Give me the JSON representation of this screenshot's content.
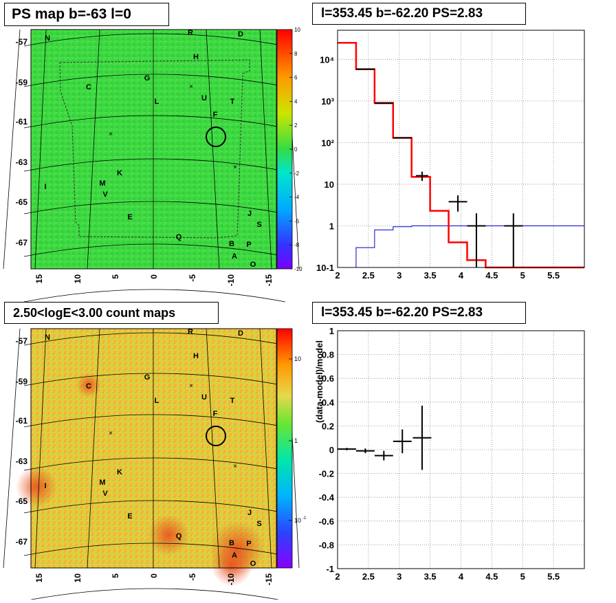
{
  "panels": {
    "tl_title": "PS map b=-63 l=0",
    "tr_title": "l=353.45 b=-62.20 PS=2.83",
    "bl_title": "2.50<logE<3.00 count maps",
    "br_title": "l=353.45 b=-62.20 PS=2.83"
  },
  "sky_maps": {
    "b_labels": [
      "-57",
      "-59",
      "-61",
      "-63",
      "-65",
      "-67"
    ],
    "l_labels": [
      "15",
      "10",
      "5",
      "0",
      "-5",
      "-10",
      "-15"
    ],
    "sources": [
      "N",
      "R",
      "D",
      "H",
      "C",
      "G",
      "U",
      "L",
      "T",
      "F",
      "K",
      "M",
      "V",
      "I",
      "E",
      "J",
      "S",
      "Q",
      "B",
      "P",
      "A",
      "O"
    ],
    "ps_colorbar_labels": [
      "10",
      "8",
      "6",
      "4",
      "2",
      "0",
      "-2",
      "-4",
      "-6",
      "-8",
      "-10"
    ],
    "count_colorbar_labels": [
      "10",
      "1",
      "10",
      "-1"
    ],
    "colors": {
      "map_background": "#3cd840",
      "counts_background": "#e8d040"
    }
  },
  "chart_data": [
    {
      "type": "line",
      "panel": "spectrum",
      "y_scale": "log",
      "xlim": [
        2,
        6
      ],
      "ylim": [
        0.1,
        50000
      ],
      "x_ticks": [
        "2",
        "2.5",
        "3",
        "3.5",
        "4",
        "4.5",
        "5",
        "5.5"
      ],
      "y_ticks": [
        "10-1",
        "1",
        "10",
        "10²",
        "10³",
        "10⁴"
      ],
      "series": [
        {
          "kind": "model-total",
          "color": "#ff0000",
          "edges": [
            2,
            2.3,
            2.6,
            2.9,
            3.2,
            3.5,
            3.8,
            4.1,
            4.4,
            6
          ],
          "values": [
            25000,
            5800,
            900,
            130,
            15,
            2.3,
            0.4,
            0.15,
            0.1
          ]
        },
        {
          "kind": "model-background",
          "color": "#0000cc",
          "edges": [
            2.3,
            2.6,
            2.9,
            3.2,
            3.5,
            6
          ],
          "values": [
            0.3,
            0.8,
            0.95,
            1.0,
            1.0
          ]
        },
        {
          "kind": "data",
          "color": "#000000",
          "points": [
            [
              2.45,
              5800,
              0.15,
              0
            ],
            [
              2.75,
              880,
              0.15,
              0
            ],
            [
              3.05,
              130,
              0.15,
              0
            ],
            [
              3.37,
              16,
              0.1,
              4
            ],
            [
              3.95,
              3.8,
              0.15,
              1.6
            ],
            [
              4.25,
              1.0,
              0.15,
              1.0
            ],
            [
              4.85,
              1.0,
              0.15,
              1.0
            ]
          ]
        }
      ]
    },
    {
      "type": "scatter",
      "panel": "residuals",
      "ylabel": "(data-model)/model",
      "xlim": [
        2,
        6
      ],
      "ylim": [
        -1,
        1
      ],
      "x_ticks": [
        "2",
        "2.5",
        "3",
        "3.5",
        "4",
        "4.5",
        "5",
        "5.5"
      ],
      "y_ticks": [
        "-1",
        "-0.8",
        "-0.6",
        "-0.4",
        "-0.2",
        "0",
        "0.2",
        "0.4",
        "0.6",
        "0.8",
        "1"
      ],
      "points": [
        {
          "x": 2.15,
          "y": 0.005,
          "xerr": 0.15,
          "yerr": 0.01
        },
        {
          "x": 2.45,
          "y": -0.01,
          "xerr": 0.15,
          "yerr": 0.02
        },
        {
          "x": 2.75,
          "y": -0.05,
          "xerr": 0.15,
          "yerr": 0.04
        },
        {
          "x": 3.05,
          "y": 0.07,
          "xerr": 0.15,
          "yerr": 0.1
        },
        {
          "x": 3.37,
          "y": 0.1,
          "xerr": 0.15,
          "yerr": 0.27
        }
      ]
    }
  ]
}
